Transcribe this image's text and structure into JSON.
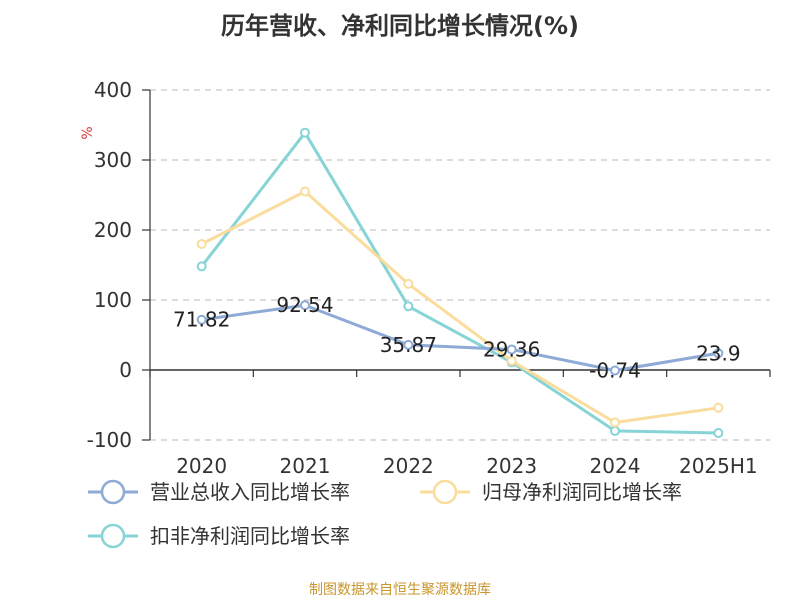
{
  "chart_data": {
    "type": "line",
    "title": "历年营收、净利同比增长情况(%)",
    "ylabel": "%",
    "categories": [
      "2020",
      "2021",
      "2022",
      "2023",
      "2024",
      "2025H1"
    ],
    "ylim": [
      -100,
      400
    ],
    "yticks": [
      400,
      300,
      200,
      100,
      0,
      -100
    ],
    "grid": true,
    "legend_position": "bottom-left",
    "series": [
      {
        "name": "营业总收入同比增长率",
        "color": "#8eaad6",
        "values": [
          71.82,
          92.54,
          35.87,
          29.36,
          -0.74,
          23.9
        ],
        "labels": [
          "71.82",
          "92.54",
          "35.87",
          "29.36",
          "-0.74",
          "23.9"
        ]
      },
      {
        "name": "归母净利润同比增长率",
        "color": "#fadc9c",
        "values": [
          180,
          255,
          123,
          13,
          -75,
          -54
        ]
      },
      {
        "name": "扣非净利润同比增长率",
        "color": "#86d4d6",
        "values": [
          148,
          339,
          91,
          11,
          -87,
          -90
        ]
      }
    ]
  },
  "source": "制图数据来自恒生聚源数据库"
}
